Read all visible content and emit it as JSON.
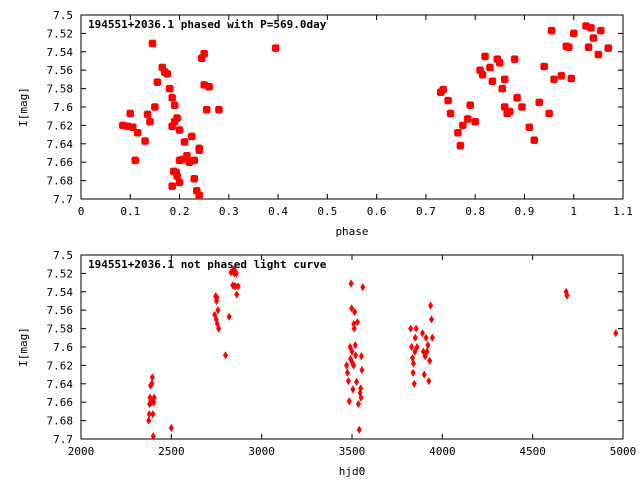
{
  "chart_data": [
    {
      "type": "scatter",
      "title": "194551+2036.1 phased with P=569.0day",
      "xlabel": "phase",
      "ylabel": "I[mag]",
      "xlim": [
        0,
        1.1
      ],
      "ylim": [
        7.5,
        7.7
      ],
      "y_inverted": true,
      "xticks": [
        "0",
        "0.1",
        "0.2",
        "0.3",
        "0.4",
        "0.5",
        "0.6",
        "0.7",
        "0.8",
        "0.9",
        "1",
        "1.1"
      ],
      "xtick_values": [
        0,
        0.1,
        0.2,
        0.3,
        0.4,
        0.5,
        0.6,
        0.7,
        0.8,
        0.9,
        1.0,
        1.1
      ],
      "yticks": [
        "7.5",
        "7.52",
        "7.54",
        "7.56",
        "7.58",
        "7.6",
        "7.62",
        "7.64",
        "7.66",
        "7.68",
        "7.7"
      ],
      "ytick_values": [
        7.5,
        7.52,
        7.54,
        7.56,
        7.58,
        7.6,
        7.62,
        7.64,
        7.66,
        7.68,
        7.7
      ],
      "marker_color": "#ff0000",
      "marker": "filled-square-cross",
      "series": [
        {
          "x": [
            0.085,
            0.095,
            0.1,
            0.105,
            0.11,
            0.115,
            0.13,
            0.135,
            0.14,
            0.145,
            0.15,
            0.155,
            0.165,
            0.17,
            0.175,
            0.18,
            0.185,
            0.185,
            0.19,
            0.19,
            0.195,
            0.2,
            0.2,
            0.205,
            0.21,
            0.215,
            0.22,
            0.225,
            0.23,
            0.235,
            0.24,
            0.24,
            0.245,
            0.25,
            0.25,
            0.255,
            0.26,
            0.28,
            0.395,
            0.185,
            0.195,
            0.2,
            0.23,
            0.24,
            0.188,
            0.193,
            0.73,
            0.735,
            0.745,
            0.75,
            0.765,
            0.77,
            0.775,
            0.785,
            0.79,
            0.8,
            0.81,
            0.815,
            0.82,
            0.83,
            0.835,
            0.845,
            0.85,
            0.855,
            0.86,
            0.86,
            0.865,
            0.87,
            0.88,
            0.885,
            0.895,
            0.91,
            0.92,
            0.93,
            0.94,
            0.95,
            0.955,
            0.96,
            0.975,
            0.985,
            0.99,
            0.995,
            1.0,
            1.025,
            1.03,
            1.035,
            1.04,
            1.05,
            1.055,
            1.07
          ],
          "y": [
            7.62,
            7.621,
            7.607,
            7.622,
            7.658,
            7.628,
            7.637,
            7.608,
            7.616,
            7.531,
            7.6,
            7.573,
            7.557,
            7.562,
            7.564,
            7.58,
            7.621,
            7.59,
            7.598,
            7.616,
            7.612,
            7.625,
            7.658,
            7.657,
            7.638,
            7.653,
            7.66,
            7.632,
            7.658,
            7.691,
            7.645,
            7.647,
            7.547,
            7.576,
            7.542,
            7.603,
            7.578,
            7.603,
            7.536,
            7.686,
            7.675,
            7.682,
            7.678,
            7.696,
            7.67,
            7.671,
            7.584,
            7.581,
            7.593,
            7.607,
            7.628,
            7.642,
            7.62,
            7.613,
            7.598,
            7.616,
            7.56,
            7.565,
            7.545,
            7.557,
            7.572,
            7.548,
            7.552,
            7.58,
            7.57,
            7.6,
            7.607,
            7.605,
            7.548,
            7.59,
            7.6,
            7.622,
            7.636,
            7.595,
            7.556,
            7.607,
            7.517,
            7.57,
            7.566,
            7.534,
            7.535,
            7.569,
            7.52,
            7.512,
            7.535,
            7.514,
            7.525,
            7.543,
            7.517,
            7.536
          ]
        }
      ]
    },
    {
      "type": "scatter",
      "title": "194551+2036.1 not phased light curve",
      "xlabel": "hjd0",
      "ylabel": "I[mag]",
      "xlim": [
        2000,
        5000
      ],
      "ylim": [
        7.5,
        7.7
      ],
      "y_inverted": true,
      "xticks": [
        "2000",
        "2500",
        "3000",
        "3500",
        "4000",
        "4500",
        "5000"
      ],
      "xtick_values": [
        2000,
        2500,
        3000,
        3500,
        4000,
        4500,
        5000
      ],
      "yticks": [
        "7.5",
        "7.52",
        "7.54",
        "7.56",
        "7.58",
        "7.6",
        "7.62",
        "7.64",
        "7.66",
        "7.68",
        "7.7"
      ],
      "ytick_values": [
        7.5,
        7.52,
        7.54,
        7.56,
        7.58,
        7.6,
        7.62,
        7.64,
        7.66,
        7.68,
        7.7
      ],
      "marker_color": "#ff0000",
      "marker": "diamond",
      "series": [
        {
          "x": [
            2375,
            2378,
            2380,
            2382,
            2385,
            2388,
            2390,
            2392,
            2395,
            2398,
            2400,
            2402,
            2405,
            2500,
            2740,
            2745,
            2748,
            2750,
            2752,
            2755,
            2758,
            2762,
            2800,
            2820,
            2830,
            2840,
            2845,
            2848,
            2850,
            2852,
            2855,
            2860,
            2862,
            2870,
            3470,
            3475,
            3480,
            3485,
            3490,
            3492,
            3495,
            3498,
            3500,
            3502,
            3505,
            3508,
            3510,
            3512,
            3515,
            3518,
            3520,
            3525,
            3530,
            3535,
            3540,
            3545,
            3548,
            3550,
            3552,
            3555,
            3560,
            3825,
            3830,
            3835,
            3838,
            3840,
            3845,
            3848,
            3850,
            3855,
            3860,
            3890,
            3895,
            3900,
            3905,
            3910,
            3915,
            3920,
            3925,
            3930,
            3935,
            3940,
            3945,
            4685,
            4690,
            4960
          ],
          "y": [
            7.68,
            7.673,
            7.662,
            7.655,
            7.642,
            7.658,
            7.66,
            7.64,
            7.633,
            7.673,
            7.697,
            7.66,
            7.655,
            7.688,
            7.565,
            7.545,
            7.57,
            7.55,
            7.546,
            7.575,
            7.56,
            7.58,
            7.609,
            7.567,
            7.519,
            7.533,
            7.516,
            7.52,
            7.534,
            7.517,
            7.534,
            7.52,
            7.543,
            7.534,
            7.62,
            7.628,
            7.637,
            7.659,
            7.6,
            7.613,
            7.531,
            7.558,
            7.605,
            7.617,
            7.646,
            7.62,
            7.575,
            7.58,
            7.562,
            7.598,
            7.609,
            7.638,
            7.573,
            7.662,
            7.69,
            7.65,
            7.645,
            7.655,
            7.61,
            7.625,
            7.535,
            7.58,
            7.6,
            7.612,
            7.628,
            7.618,
            7.64,
            7.605,
            7.59,
            7.58,
            7.6,
            7.585,
            7.605,
            7.63,
            7.61,
            7.59,
            7.605,
            7.598,
            7.637,
            7.615,
            7.555,
            7.57,
            7.59,
            7.54,
            7.544,
            7.585
          ]
        }
      ]
    }
  ]
}
